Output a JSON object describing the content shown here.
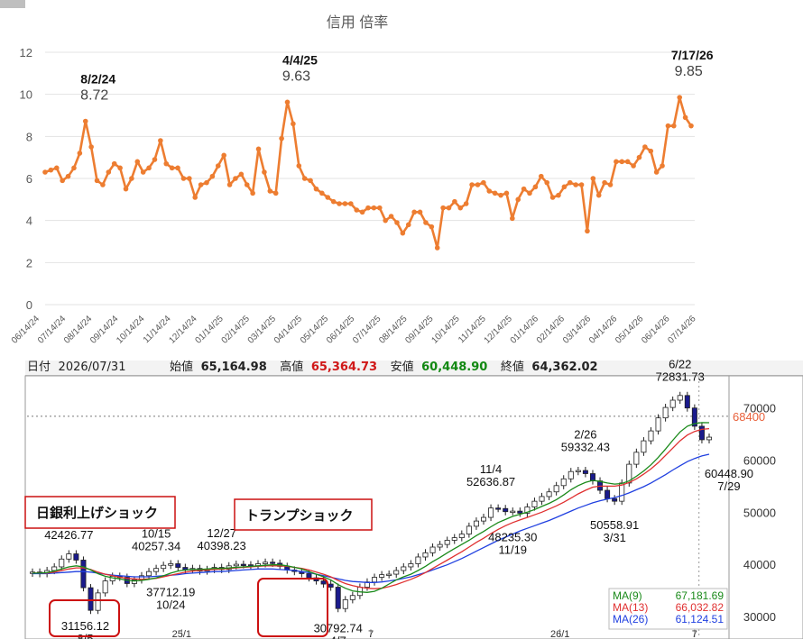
{
  "chart_data": [
    {
      "type": "line",
      "title": "信用 倍率",
      "ylim": [
        0,
        12
      ],
      "yticks": [
        0,
        2,
        4,
        6,
        8,
        10,
        12
      ],
      "xticklabels": [
        "06/14/24",
        "07/14/24",
        "08/14/24",
        "09/14/24",
        "10/14/24",
        "11/14/24",
        "12/14/24",
        "01/14/25",
        "02/14/25",
        "03/14/25",
        "04/14/25",
        "05/14/25",
        "06/14/25",
        "07/14/25",
        "08/14/25",
        "09/14/25",
        "10/14/25",
        "11/14/25",
        "12/14/25",
        "01/14/26",
        "02/14/26",
        "03/14/26",
        "04/14/26",
        "05/14/26",
        "06/14/26",
        "07/14/26"
      ],
      "color": "#ed7d31",
      "grid": true,
      "values": [
        6.3,
        6.4,
        6.5,
        5.9,
        6.1,
        6.5,
        7.2,
        8.72,
        7.5,
        5.9,
        5.7,
        6.3,
        6.7,
        6.5,
        5.5,
        6.0,
        6.8,
        6.3,
        6.5,
        6.9,
        7.8,
        6.7,
        6.5,
        6.5,
        6.0,
        6.0,
        5.1,
        5.7,
        5.8,
        6.1,
        6.6,
        7.1,
        5.7,
        6.0,
        6.2,
        5.7,
        5.3,
        7.4,
        6.3,
        5.4,
        5.3,
        7.9,
        9.63,
        8.6,
        6.6,
        6.0,
        5.9,
        5.5,
        5.3,
        5.1,
        4.9,
        4.8,
        4.8,
        4.8,
        4.5,
        4.4,
        4.6,
        4.6,
        4.6,
        4.0,
        4.2,
        3.9,
        3.4,
        3.8,
        4.4,
        4.4,
        3.9,
        3.7,
        2.7,
        4.6,
        4.6,
        4.9,
        4.6,
        4.8,
        5.7,
        5.7,
        5.8,
        5.4,
        5.3,
        5.2,
        5.3,
        4.1,
        5.0,
        5.5,
        5.3,
        5.6,
        6.1,
        5.8,
        5.1,
        5.2,
        5.6,
        5.8,
        5.7,
        5.7,
        3.5,
        6.0,
        5.2,
        5.8,
        5.7,
        6.8,
        6.8,
        6.8,
        6.6,
        7.0,
        7.5,
        7.3,
        6.3,
        6.6,
        8.5,
        8.5,
        9.85,
        8.9,
        8.5
      ],
      "annotations": [
        {
          "date": "8/2/24",
          "value": "8.72",
          "index": 7
        },
        {
          "date": "4/4/25",
          "value": "9.63",
          "index": 42
        },
        {
          "date": "7/17/26",
          "value": "9.85",
          "index": 110
        }
      ]
    },
    {
      "type": "candlestick",
      "header": {
        "date_label": "日付",
        "date": "2026/07/31",
        "open_label": "始値",
        "open": "65,164.98",
        "high_label": "高値",
        "high": "65,364.73",
        "low_label": "安値",
        "low": "60,448.90",
        "close_label": "終値",
        "close": "64,362.02"
      },
      "ylim": [
        26000,
        76000
      ],
      "yticks": [
        "30000",
        "40000",
        "50000",
        "60000",
        "70000"
      ],
      "xticklabels": [
        "25/1",
        "7",
        "26/1",
        "7"
      ],
      "current_price": "68400",
      "closes": [
        38500,
        38200,
        38800,
        39500,
        41000,
        42000,
        40800,
        35500,
        31156,
        34500,
        36800,
        37700,
        37500,
        36300,
        37000,
        37800,
        38600,
        39200,
        39800,
        40100,
        39400,
        38900,
        39200,
        38700,
        39000,
        39400,
        39000,
        39700,
        40000,
        39900,
        39700,
        40100,
        40400,
        40200,
        39600,
        38900,
        38600,
        38200,
        37400,
        36800,
        36200,
        35600,
        31500,
        33200,
        34000,
        35600,
        36600,
        37500,
        38000,
        38100,
        38800,
        39500,
        40100,
        41400,
        42200,
        43300,
        43800,
        44600,
        45100,
        45800,
        47300,
        48300,
        49000,
        50800,
        50700,
        50100,
        50200,
        49800,
        51000,
        52100,
        53000,
        53900,
        55100,
        56400,
        57800,
        58000,
        57400,
        56000,
        54200,
        52600,
        52100,
        55600,
        59200,
        61500,
        63700,
        65600,
        68100,
        70100,
        71500,
        72400,
        70000,
        66500,
        63900,
        64400
      ],
      "ma9": [
        38300,
        38300,
        38400,
        38700,
        39100,
        39500,
        39700,
        39500,
        38900,
        38200,
        37700,
        37400,
        37200,
        36900,
        36800,
        36900,
        37100,
        37400,
        37800,
        38300,
        38700,
        38900,
        39000,
        39000,
        39100,
        39200,
        39200,
        39300,
        39400,
        39500,
        39600,
        39700,
        39800,
        39900,
        39900,
        39700,
        39400,
        39100,
        38600,
        38100,
        37600,
        37000,
        36100,
        35400,
        34900,
        34700,
        34600,
        34800,
        35400,
        36200,
        37000,
        37600,
        38100,
        38800,
        39600,
        40500,
        41300,
        42200,
        43000,
        43800,
        44600,
        45500,
        46300,
        47200,
        48000,
        48600,
        49200,
        49600,
        50000,
        50500,
        51100,
        51700,
        52400,
        53300,
        54300,
        55100,
        55700,
        56100,
        55900,
        55600,
        55400,
        55500,
        56000,
        56900,
        57900,
        59100,
        60500,
        62100,
        63800,
        65400,
        66500,
        67000,
        67200,
        67182
      ],
      "ma13": [
        38300,
        38300,
        38300,
        38500,
        38800,
        39100,
        39300,
        39300,
        39000,
        38500,
        38100,
        37800,
        37500,
        37300,
        37200,
        37100,
        37200,
        37300,
        37600,
        37900,
        38200,
        38500,
        38700,
        38800,
        38900,
        39000,
        39100,
        39200,
        39300,
        39400,
        39500,
        39600,
        39700,
        39700,
        39700,
        39600,
        39400,
        39200,
        38900,
        38500,
        38100,
        37600,
        36900,
        36300,
        35900,
        35600,
        35400,
        35300,
        35400,
        35700,
        36100,
        36600,
        37100,
        37700,
        38400,
        39200,
        40000,
        40800,
        41600,
        42400,
        43300,
        44200,
        45000,
        45900,
        46700,
        47400,
        48000,
        48500,
        49000,
        49500,
        50000,
        50600,
        51200,
        51900,
        52700,
        53500,
        54200,
        54800,
        55000,
        55000,
        55000,
        55200,
        55700,
        56400,
        57300,
        58300,
        59500,
        60900,
        62300,
        63700,
        64800,
        65500,
        65900,
        66033
      ],
      "ma26": [
        38200,
        38200,
        38200,
        38300,
        38400,
        38500,
        38600,
        38600,
        38500,
        38300,
        38100,
        37900,
        37800,
        37700,
        37600,
        37600,
        37600,
        37700,
        37800,
        37900,
        38000,
        38200,
        38300,
        38400,
        38500,
        38600,
        38600,
        38700,
        38800,
        38900,
        39000,
        39100,
        39100,
        39100,
        39000,
        38900,
        38800,
        38600,
        38400,
        38100,
        37800,
        37500,
        37200,
        36900,
        36700,
        36600,
        36500,
        36500,
        36600,
        36800,
        37000,
        37300,
        37600,
        38000,
        38400,
        38900,
        39400,
        39900,
        40500,
        41100,
        41800,
        42500,
        43200,
        43900,
        44600,
        45200,
        45800,
        46400,
        46900,
        47400,
        47900,
        48400,
        49000,
        49600,
        50200,
        50800,
        51300,
        51800,
        52200,
        52500,
        52800,
        53200,
        53700,
        54300,
        54900,
        55600,
        56400,
        57200,
        58100,
        58900,
        59700,
        60300,
        60800,
        61125
      ],
      "labels": [
        {
          "date": "7/11",
          "price": "42426.77",
          "index": 5
        },
        {
          "price": "31156.12",
          "date": "8/5",
          "index": 8
        },
        {
          "date": "10/15",
          "price": "40257.34",
          "index": 17
        },
        {
          "price": "37712.19",
          "date": "10/24",
          "index": 19
        },
        {
          "date": "12/27",
          "price": "40398.23",
          "index": 26
        },
        {
          "price": "30792.74",
          "date": "4/7",
          "index": 42
        },
        {
          "date": "11/4",
          "price": "52636.87",
          "index": 63
        },
        {
          "price": "48235.30",
          "date": "11/19",
          "index": 66
        },
        {
          "date": "2/26",
          "price": "59332.43",
          "index": 76
        },
        {
          "price": "50558.91",
          "date": "3/31",
          "index": 80
        },
        {
          "date": "6/22",
          "price": "72831.73",
          "index": 89
        },
        {
          "price": "60448.90",
          "date": "7/29",
          "index": 92
        }
      ],
      "events": [
        {
          "text": "日銀利上げショック"
        },
        {
          "text": "トランプショック"
        }
      ],
      "legend": [
        {
          "name": "MA(9)",
          "value": "67,181.69",
          "color": "#1a8a1a"
        },
        {
          "name": "MA(13)",
          "value": "66,032.82",
          "color": "#e03030"
        },
        {
          "name": "MA(26)",
          "value": "61,124.51",
          "color": "#2040e0"
        }
      ],
      "colors": {
        "up": "#ffffff",
        "down": "#1a1a8c",
        "ma9": "#1a8a1a",
        "ma13": "#e03030",
        "ma26": "#2040e0",
        "price_tag": "#e8603a",
        "highlight_box": "#cc1010"
      }
    }
  ]
}
